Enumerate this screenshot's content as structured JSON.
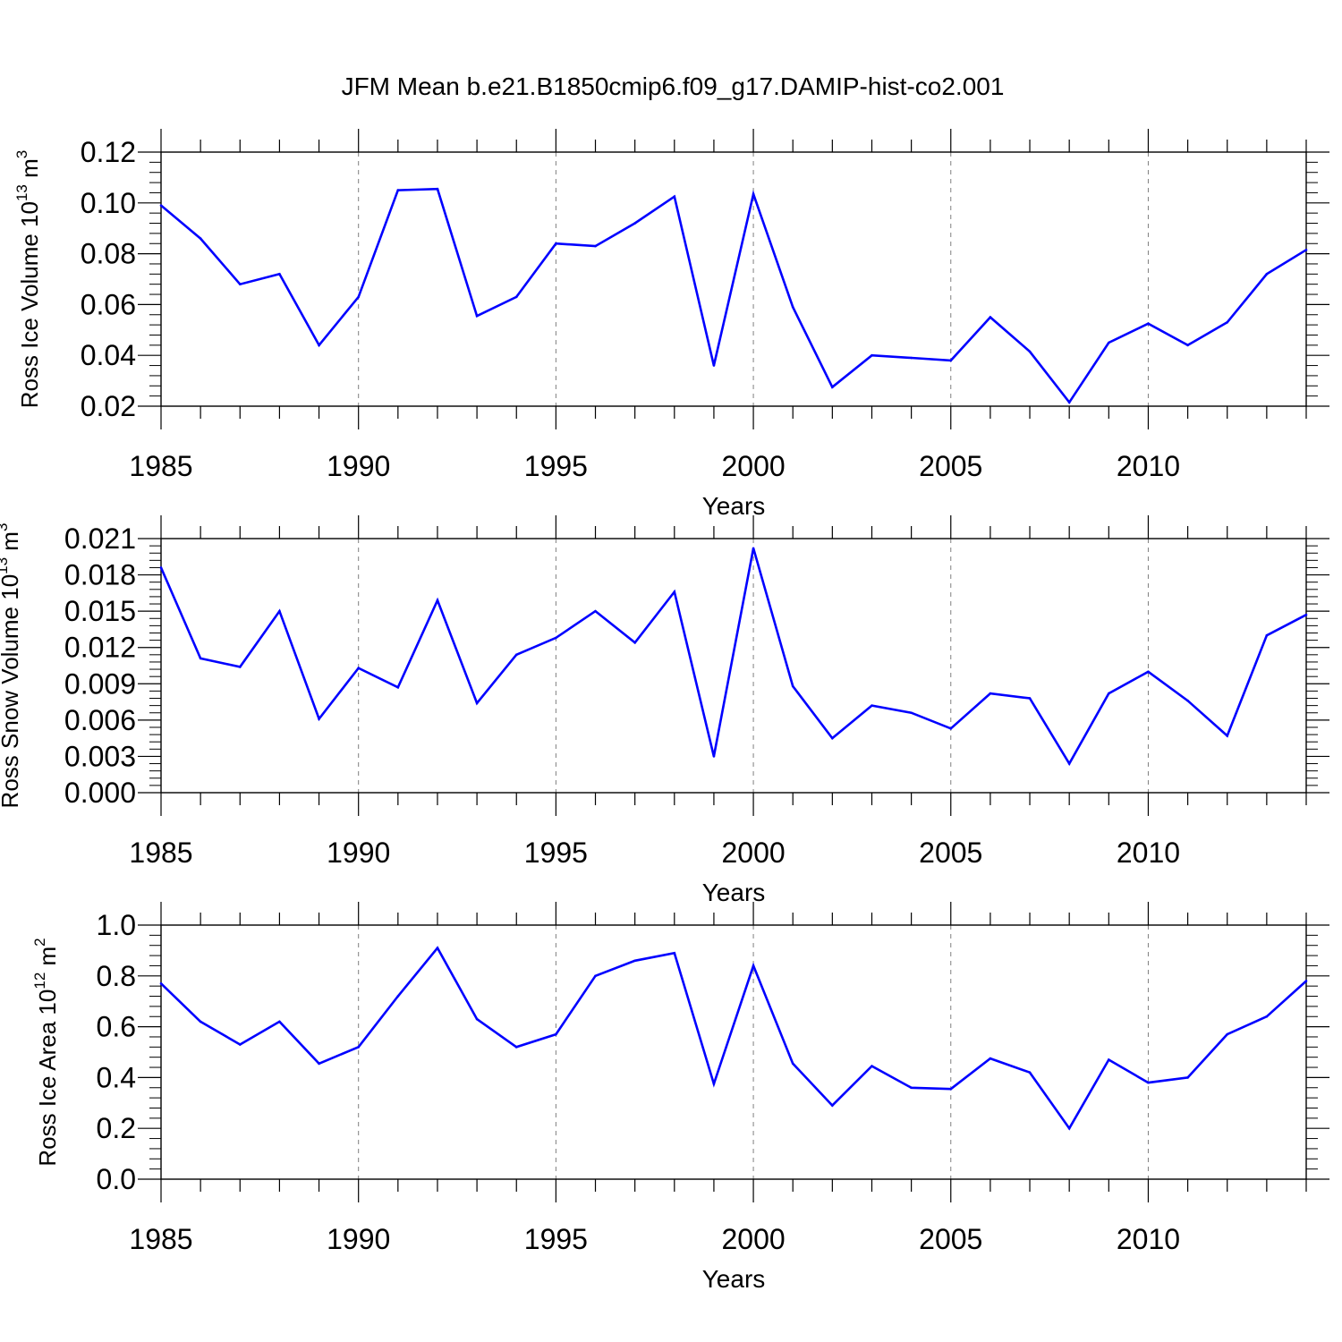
{
  "figure_title": "JFM Mean b.e21.B1850cmip6.f09_g17.DAMIP-hist-co2.001",
  "colors": {
    "line": "#0000ff",
    "axis": "#000000",
    "grid": "#7f7f7f"
  },
  "chart_data": [
    {
      "type": "line",
      "title": "JFM Mean b.e21.B1850cmip6.f09_g17.DAMIP-hist-co2.001",
      "xlabel": "Years",
      "ylabel": {
        "base": "Ross Ice Volume 10",
        "exp": "13",
        "unit": " m",
        "unit_exp": "3"
      },
      "xlim": [
        1985,
        2014
      ],
      "ylim": [
        0.02,
        0.12
      ],
      "y_ticks": [
        "0.02",
        "0.04",
        "0.06",
        "0.08",
        "0.10",
        "0.12"
      ],
      "x_ticks": [
        "1985",
        "1990",
        "1995",
        "2000",
        "2005",
        "2010"
      ],
      "grid": "vertical dashed at x ticks",
      "x": [
        1985,
        1986,
        1987,
        1988,
        1989,
        1990,
        1991,
        1992,
        1993,
        1994,
        1995,
        1996,
        1997,
        1998,
        1999,
        2000,
        2001,
        2002,
        2003,
        2004,
        2005,
        2006,
        2007,
        2008,
        2009,
        2010,
        2011,
        2012,
        2013,
        2014
      ],
      "values": [
        0.099,
        0.086,
        0.068,
        0.072,
        0.044,
        0.063,
        0.105,
        0.1055,
        0.0555,
        0.063,
        0.084,
        0.083,
        0.092,
        0.1025,
        0.036,
        0.1035,
        0.059,
        0.0275,
        0.04,
        0.039,
        0.038,
        0.055,
        0.0415,
        0.0215,
        0.045,
        0.0525,
        0.044,
        0.053,
        0.072,
        0.0815
      ]
    },
    {
      "type": "line",
      "xlabel": "Years",
      "ylabel": {
        "base": "Ross Snow Volume 10",
        "exp": "13",
        "unit": " m",
        "unit_exp": "3"
      },
      "xlim": [
        1985,
        2014
      ],
      "ylim": [
        0.0,
        0.021
      ],
      "y_ticks": [
        "0.000",
        "0.003",
        "0.006",
        "0.009",
        "0.012",
        "0.015",
        "0.018",
        "0.021"
      ],
      "x_ticks": [
        "1985",
        "1990",
        "1995",
        "2000",
        "2005",
        "2010"
      ],
      "grid": "vertical dashed at x ticks",
      "x": [
        1985,
        1986,
        1987,
        1988,
        1989,
        1990,
        1991,
        1992,
        1993,
        1994,
        1995,
        1996,
        1997,
        1998,
        1999,
        2000,
        2001,
        2002,
        2003,
        2004,
        2005,
        2006,
        2007,
        2008,
        2009,
        2010,
        2011,
        2012,
        2013,
        2014
      ],
      "values": [
        0.0186,
        0.0111,
        0.0104,
        0.015,
        0.0061,
        0.0103,
        0.0087,
        0.0159,
        0.0074,
        0.0114,
        0.0128,
        0.015,
        0.0124,
        0.0166,
        0.003,
        0.0202,
        0.0088,
        0.0045,
        0.0072,
        0.0066,
        0.0053,
        0.0082,
        0.0078,
        0.0024,
        0.0082,
        0.01,
        0.0076,
        0.0047,
        0.013,
        0.0147
      ]
    },
    {
      "type": "line",
      "xlabel": "Years",
      "ylabel": {
        "base": "Ross Ice Area 10",
        "exp": "12",
        "unit": " m",
        "unit_exp": "2"
      },
      "xlim": [
        1985,
        2014
      ],
      "ylim": [
        0.0,
        1.0
      ],
      "y_ticks": [
        "0.0",
        "0.2",
        "0.4",
        "0.6",
        "0.8",
        "1.0"
      ],
      "x_ticks": [
        "1985",
        "1990",
        "1995",
        "2000",
        "2005",
        "2010"
      ],
      "grid": "vertical dashed at x ticks",
      "x": [
        1985,
        1986,
        1987,
        1988,
        1989,
        1990,
        1991,
        1992,
        1993,
        1994,
        1995,
        1996,
        1997,
        1998,
        1999,
        2000,
        2001,
        2002,
        2003,
        2004,
        2005,
        2006,
        2007,
        2008,
        2009,
        2010,
        2011,
        2012,
        2013,
        2014
      ],
      "values": [
        0.77,
        0.62,
        0.53,
        0.62,
        0.455,
        0.52,
        0.72,
        0.91,
        0.63,
        0.52,
        0.57,
        0.8,
        0.86,
        0.89,
        0.375,
        0.84,
        0.455,
        0.29,
        0.445,
        0.36,
        0.355,
        0.475,
        0.42,
        0.2,
        0.47,
        0.38,
        0.4,
        0.57,
        0.64,
        0.78
      ]
    }
  ]
}
